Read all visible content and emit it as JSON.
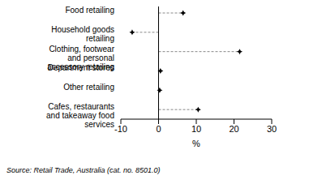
{
  "chart_data": {
    "type": "dot",
    "orientation": "horizontal",
    "categories": [
      "Food retailing",
      "Household goods retailing",
      "Clothing, footwear and personal accessory retailing",
      "Department stores",
      "Other retailing",
      "Cafes, restaurants and takeaway food services"
    ],
    "values": [
      6.5,
      -7,
      21.5,
      0.5,
      0.3,
      10.5
    ],
    "xlabel": "%",
    "xlim": [
      -10,
      30
    ],
    "xticks": [
      -10,
      0,
      10,
      20,
      30
    ],
    "color": "#000000",
    "line_style": "dashed",
    "marker": "star",
    "annotations": [
      "Source: Retail Trade, Australia (cat. no. 8501.0)"
    ]
  }
}
